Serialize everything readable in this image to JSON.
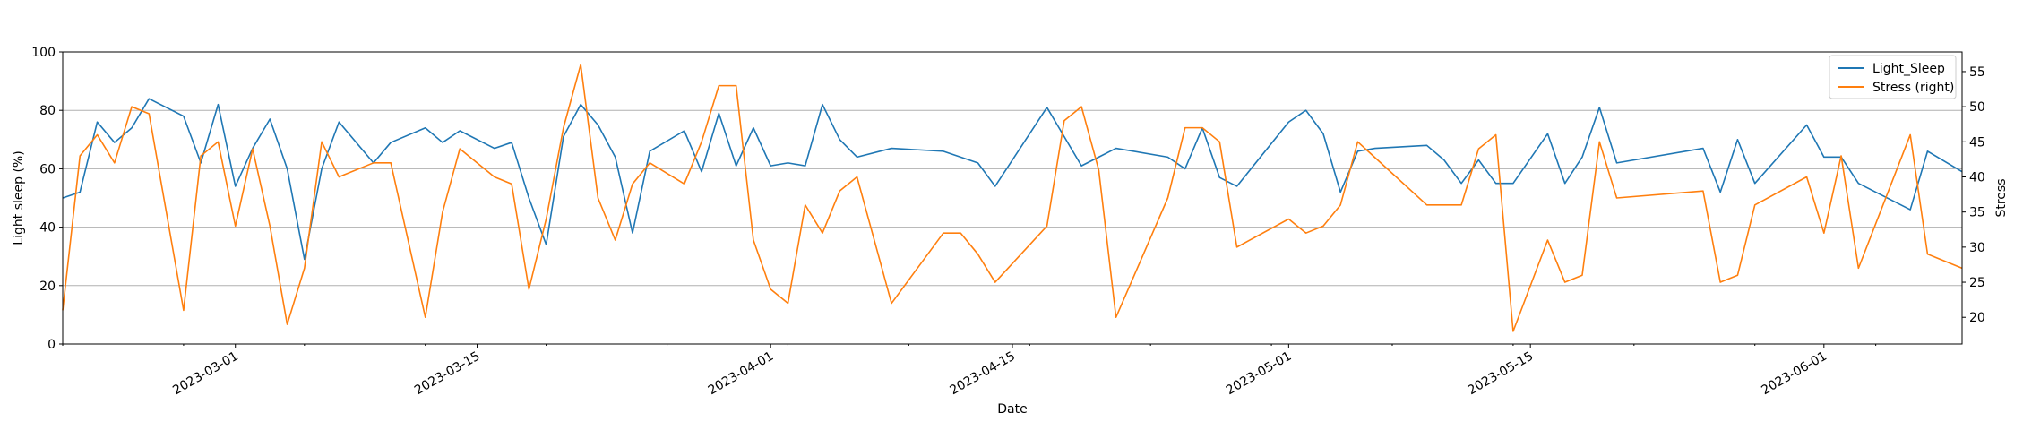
{
  "chart_data": {
    "type": "line",
    "xlabel": "Date",
    "ylabel_left": "Light sleep (%)",
    "ylabel_right": "Stress",
    "x_range": [
      "2023-02-19",
      "2023-06-09"
    ],
    "ylim_left": [
      0,
      100
    ],
    "ylim_right": [
      16.2,
      57.8
    ],
    "yticks_left": [
      0,
      20,
      40,
      60,
      80,
      100
    ],
    "yticks_right": [
      20,
      25,
      30,
      35,
      40,
      45,
      50,
      55
    ],
    "xticks": [
      "2023-03-01",
      "2023-03-15",
      "2023-04-01",
      "2023-04-15",
      "2023-05-01",
      "2023-05-15",
      "2023-06-01"
    ],
    "grid": "horizontal",
    "legend_position": "top-right",
    "series": [
      {
        "name": "Light_Sleep",
        "axis": "left",
        "color": "#1f77b4",
        "points": [
          [
            "2023-02-19",
            50
          ],
          [
            "2023-02-20",
            52
          ],
          [
            "2023-02-21",
            76
          ],
          [
            "2023-02-22",
            69
          ],
          [
            "2023-02-23",
            74
          ],
          [
            "2023-02-24",
            84
          ],
          [
            "2023-02-26",
            78
          ],
          [
            "2023-02-27",
            62
          ],
          [
            "2023-02-28",
            82
          ],
          [
            "2023-03-01",
            54
          ],
          [
            "2023-03-02",
            67
          ],
          [
            "2023-03-03",
            77
          ],
          [
            "2023-03-04",
            60
          ],
          [
            "2023-03-05",
            29
          ],
          [
            "2023-03-06",
            60
          ],
          [
            "2023-03-07",
            76
          ],
          [
            "2023-03-09",
            62
          ],
          [
            "2023-03-10",
            69
          ],
          [
            "2023-03-12",
            74
          ],
          [
            "2023-03-13",
            69
          ],
          [
            "2023-03-14",
            73
          ],
          [
            "2023-03-16",
            67
          ],
          [
            "2023-03-17",
            69
          ],
          [
            "2023-03-18",
            50
          ],
          [
            "2023-03-19",
            34
          ],
          [
            "2023-03-20",
            71
          ],
          [
            "2023-03-21",
            82
          ],
          [
            "2023-03-22",
            75
          ],
          [
            "2023-03-23",
            64
          ],
          [
            "2023-03-24",
            38
          ],
          [
            "2023-03-25",
            66
          ],
          [
            "2023-03-27",
            73
          ],
          [
            "2023-03-28",
            59
          ],
          [
            "2023-03-29",
            79
          ],
          [
            "2023-03-30",
            61
          ],
          [
            "2023-03-31",
            74
          ],
          [
            "2023-04-01",
            61
          ],
          [
            "2023-04-02",
            62
          ],
          [
            "2023-04-03",
            61
          ],
          [
            "2023-04-04",
            82
          ],
          [
            "2023-04-05",
            70
          ],
          [
            "2023-04-06",
            64
          ],
          [
            "2023-04-08",
            67
          ],
          [
            "2023-04-11",
            66
          ],
          [
            "2023-04-12",
            64
          ],
          [
            "2023-04-13",
            62
          ],
          [
            "2023-04-14",
            54
          ],
          [
            "2023-04-17",
            81
          ],
          [
            "2023-04-19",
            61
          ],
          [
            "2023-04-20",
            64
          ],
          [
            "2023-04-21",
            67
          ],
          [
            "2023-04-24",
            64
          ],
          [
            "2023-04-25",
            60
          ],
          [
            "2023-04-26",
            74
          ],
          [
            "2023-04-27",
            57
          ],
          [
            "2023-04-28",
            54
          ],
          [
            "2023-05-01",
            76
          ],
          [
            "2023-05-02",
            80
          ],
          [
            "2023-05-03",
            72
          ],
          [
            "2023-05-04",
            52
          ],
          [
            "2023-05-05",
            66
          ],
          [
            "2023-05-06",
            67
          ],
          [
            "2023-05-09",
            68
          ],
          [
            "2023-05-10",
            63
          ],
          [
            "2023-05-11",
            55
          ],
          [
            "2023-05-12",
            63
          ],
          [
            "2023-05-13",
            55
          ],
          [
            "2023-05-14",
            55
          ],
          [
            "2023-05-16",
            72
          ],
          [
            "2023-05-17",
            55
          ],
          [
            "2023-05-18",
            64
          ],
          [
            "2023-05-19",
            81
          ],
          [
            "2023-05-20",
            62
          ],
          [
            "2023-05-25",
            67
          ],
          [
            "2023-05-26",
            52
          ],
          [
            "2023-05-27",
            70
          ],
          [
            "2023-05-28",
            55
          ],
          [
            "2023-05-31",
            75
          ],
          [
            "2023-06-01",
            64
          ],
          [
            "2023-06-02",
            64
          ],
          [
            "2023-06-03",
            55
          ],
          [
            "2023-06-06",
            46
          ],
          [
            "2023-06-07",
            66
          ],
          [
            "2023-06-09",
            59
          ]
        ]
      },
      {
        "name": "Stress (right)",
        "axis": "right",
        "color": "#ff7f0e",
        "points": [
          [
            "2023-02-19",
            21
          ],
          [
            "2023-02-20",
            43
          ],
          [
            "2023-02-21",
            46
          ],
          [
            "2023-02-22",
            42
          ],
          [
            "2023-02-23",
            50
          ],
          [
            "2023-02-24",
            49
          ],
          [
            "2023-02-26",
            21
          ],
          [
            "2023-02-27",
            43
          ],
          [
            "2023-02-28",
            45
          ],
          [
            "2023-03-01",
            33
          ],
          [
            "2023-03-02",
            44
          ],
          [
            "2023-03-03",
            33
          ],
          [
            "2023-03-04",
            19
          ],
          [
            "2023-03-05",
            27
          ],
          [
            "2023-03-06",
            45
          ],
          [
            "2023-03-07",
            40
          ],
          [
            "2023-03-09",
            42
          ],
          [
            "2023-03-10",
            42
          ],
          [
            "2023-03-12",
            20
          ],
          [
            "2023-03-13",
            35
          ],
          [
            "2023-03-14",
            44
          ],
          [
            "2023-03-16",
            40
          ],
          [
            "2023-03-17",
            39
          ],
          [
            "2023-03-18",
            24
          ],
          [
            "2023-03-19",
            34
          ],
          [
            "2023-03-20",
            47
          ],
          [
            "2023-03-21",
            56
          ],
          [
            "2023-03-22",
            37
          ],
          [
            "2023-03-23",
            31
          ],
          [
            "2023-03-24",
            39
          ],
          [
            "2023-03-25",
            42
          ],
          [
            "2023-03-27",
            39
          ],
          [
            "2023-03-28",
            45
          ],
          [
            "2023-03-29",
            53
          ],
          [
            "2023-03-30",
            53
          ],
          [
            "2023-03-31",
            31
          ],
          [
            "2023-04-01",
            24
          ],
          [
            "2023-04-02",
            22
          ],
          [
            "2023-04-03",
            36
          ],
          [
            "2023-04-04",
            32
          ],
          [
            "2023-04-05",
            38
          ],
          [
            "2023-04-06",
            40
          ],
          [
            "2023-04-08",
            22
          ],
          [
            "2023-04-11",
            32
          ],
          [
            "2023-04-12",
            32
          ],
          [
            "2023-04-13",
            29
          ],
          [
            "2023-04-14",
            25
          ],
          [
            "2023-04-17",
            33
          ],
          [
            "2023-04-18",
            48
          ],
          [
            "2023-04-19",
            50
          ],
          [
            "2023-04-20",
            41
          ],
          [
            "2023-04-21",
            20
          ],
          [
            "2023-04-24",
            37
          ],
          [
            "2023-04-25",
            47
          ],
          [
            "2023-04-26",
            47
          ],
          [
            "2023-04-27",
            45
          ],
          [
            "2023-04-28",
            30
          ],
          [
            "2023-05-01",
            34
          ],
          [
            "2023-05-02",
            32
          ],
          [
            "2023-05-03",
            33
          ],
          [
            "2023-05-04",
            36
          ],
          [
            "2023-05-05",
            45
          ],
          [
            "2023-05-09",
            36
          ],
          [
            "2023-05-11",
            36
          ],
          [
            "2023-05-12",
            44
          ],
          [
            "2023-05-13",
            46
          ],
          [
            "2023-05-14",
            18
          ],
          [
            "2023-05-16",
            31
          ],
          [
            "2023-05-17",
            25
          ],
          [
            "2023-05-18",
            26
          ],
          [
            "2023-05-19",
            45
          ],
          [
            "2023-05-20",
            37
          ],
          [
            "2023-05-25",
            38
          ],
          [
            "2023-05-26",
            25
          ],
          [
            "2023-05-27",
            26
          ],
          [
            "2023-05-28",
            36
          ],
          [
            "2023-05-31",
            40
          ],
          [
            "2023-06-01",
            32
          ],
          [
            "2023-06-02",
            43
          ],
          [
            "2023-06-03",
            27
          ],
          [
            "2023-06-06",
            46
          ],
          [
            "2023-06-07",
            29
          ],
          [
            "2023-06-09",
            27
          ]
        ]
      }
    ]
  }
}
